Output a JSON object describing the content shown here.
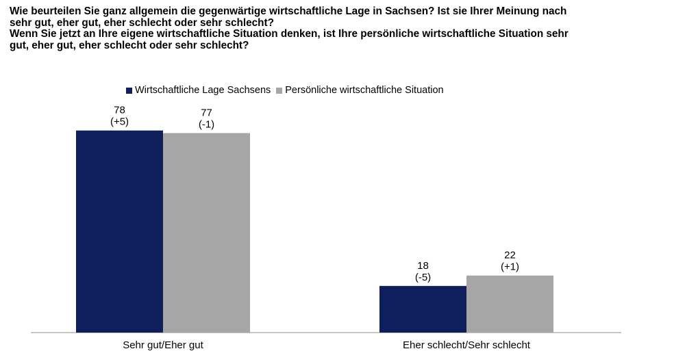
{
  "title_lines": [
    "Wie beurteilen Sie ganz allgemein die gegenwärtige wirtschaftliche Lage in Sachsen? Ist sie Ihrer Meinung nach",
    "sehr gut, eher gut, eher schlecht oder sehr schlecht?",
    "Wenn Sie jetzt an Ihre eigene wirtschaftliche Situation denken, ist Ihre persönliche wirtschaftliche Situation sehr",
    "gut, eher gut, eher schlecht oder sehr schlecht?"
  ],
  "chart_data": {
    "type": "bar",
    "categories": [
      "Sehr gut/Eher gut",
      "Eher schlecht/Sehr schlecht"
    ],
    "series": [
      {
        "name": "Wirtschaftliche Lage Sachsens",
        "values": [
          78,
          18
        ],
        "changes": [
          "(+5)",
          "(-5)"
        ],
        "color": "#0f1f5c"
      },
      {
        "name": "Persönliche wirtschaftliche Situation",
        "values": [
          77,
          22
        ],
        "changes": [
          "(-1)",
          "(+1)"
        ],
        "color": "#a6a6a6"
      }
    ],
    "ylim": [
      0,
      100
    ],
    "grid": false,
    "legend_position": "top"
  }
}
